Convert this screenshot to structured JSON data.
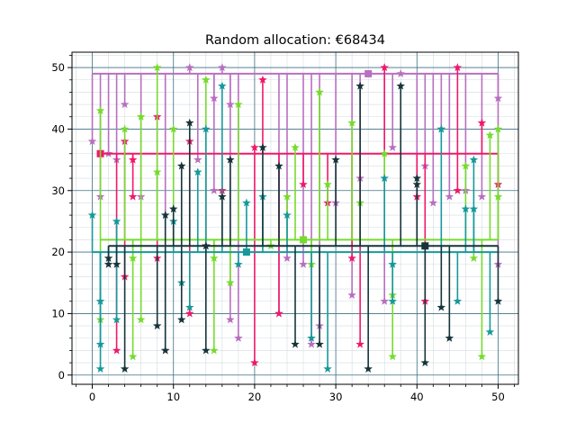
{
  "chart_data": {
    "type": "scatter",
    "title": "Random allocation: €68434",
    "xlabel": "",
    "ylabel": "",
    "xlim": [
      -2.5,
      52.5
    ],
    "ylim": [
      -1.5,
      52.5
    ],
    "x_ticks": [
      0,
      10,
      20,
      30,
      40,
      50
    ],
    "y_ticks": [
      0,
      10,
      20,
      30,
      40,
      50
    ],
    "x_tick_labels": [
      "0",
      "10",
      "20",
      "30",
      "40",
      "50"
    ],
    "y_tick_labels": [
      "0",
      "10",
      "20",
      "30",
      "40",
      "50"
    ],
    "grid": true,
    "minor_grid": true,
    "series": [
      {
        "color": "#b86fc0",
        "hub": [
          34,
          49
        ],
        "bus_y": 49,
        "bus_x": [
          0,
          50
        ],
        "points": [
          [
            0,
            38
          ],
          [
            1,
            29
          ],
          [
            2,
            36
          ],
          [
            3,
            35
          ],
          [
            4,
            44
          ],
          [
            6,
            29
          ],
          [
            9,
            4
          ],
          [
            12,
            50
          ],
          [
            13,
            35
          ],
          [
            15,
            30
          ],
          [
            15,
            45
          ],
          [
            16,
            50
          ],
          [
            17,
            9
          ],
          [
            17,
            44
          ],
          [
            18,
            6
          ],
          [
            23,
            10
          ],
          [
            24,
            19
          ],
          [
            26,
            18
          ],
          [
            27,
            5
          ],
          [
            28,
            8
          ],
          [
            30,
            28
          ],
          [
            32,
            13
          ],
          [
            33,
            32
          ],
          [
            36,
            12
          ],
          [
            37,
            37
          ],
          [
            38,
            49
          ],
          [
            40,
            29
          ],
          [
            41,
            34
          ],
          [
            42,
            28
          ],
          [
            43,
            40
          ],
          [
            44,
            29
          ],
          [
            46,
            30
          ],
          [
            48,
            29
          ],
          [
            50,
            45
          ],
          [
            50,
            18
          ]
        ]
      },
      {
        "color": "#f0186a",
        "hub": [
          1,
          36
        ],
        "bus_y": 36,
        "bus_x": [
          1,
          50
        ],
        "points": [
          [
            3,
            4
          ],
          [
            4,
            38
          ],
          [
            4,
            16
          ],
          [
            5,
            35
          ],
          [
            5,
            29
          ],
          [
            8,
            42
          ],
          [
            8,
            19
          ],
          [
            12,
            10
          ],
          [
            12,
            38
          ],
          [
            14,
            21
          ],
          [
            16,
            30
          ],
          [
            20,
            2
          ],
          [
            20,
            37
          ],
          [
            21,
            48
          ],
          [
            23,
            10
          ],
          [
            26,
            31
          ],
          [
            29,
            28
          ],
          [
            32,
            19
          ],
          [
            33,
            5
          ],
          [
            36,
            50
          ],
          [
            40,
            29
          ],
          [
            41,
            12
          ],
          [
            45,
            30
          ],
          [
            45,
            50
          ],
          [
            48,
            41
          ],
          [
            50,
            31
          ]
        ]
      },
      {
        "color": "#76db2e",
        "hub": [
          26,
          22
        ],
        "bus_y": 22,
        "bus_x": [
          1,
          50
        ],
        "points": [
          [
            1,
            43
          ],
          [
            1,
            9
          ],
          [
            4,
            40
          ],
          [
            5,
            3
          ],
          [
            5,
            19
          ],
          [
            6,
            9
          ],
          [
            6,
            42
          ],
          [
            8,
            50
          ],
          [
            8,
            33
          ],
          [
            10,
            40
          ],
          [
            14,
            48
          ],
          [
            15,
            4
          ],
          [
            15,
            19
          ],
          [
            17,
            15
          ],
          [
            18,
            44
          ],
          [
            22,
            21
          ],
          [
            24,
            29
          ],
          [
            25,
            37
          ],
          [
            27,
            18
          ],
          [
            28,
            46
          ],
          [
            29,
            31
          ],
          [
            32,
            41
          ],
          [
            33,
            28
          ],
          [
            36,
            36
          ],
          [
            37,
            13
          ],
          [
            37,
            3
          ],
          [
            46,
            34
          ],
          [
            47,
            19
          ],
          [
            48,
            3
          ],
          [
            49,
            39
          ],
          [
            50,
            29
          ],
          [
            50,
            40
          ]
        ]
      },
      {
        "color": "#17999b",
        "hub": [
          19,
          20
        ],
        "bus_y": 20,
        "bus_x": [
          0,
          50
        ],
        "points": [
          [
            0,
            26
          ],
          [
            1,
            12
          ],
          [
            1,
            5
          ],
          [
            1,
            1
          ],
          [
            3,
            25
          ],
          [
            3,
            9
          ],
          [
            10,
            25
          ],
          [
            11,
            15
          ],
          [
            12,
            11
          ],
          [
            13,
            33
          ],
          [
            14,
            40
          ],
          [
            16,
            47
          ],
          [
            18,
            18
          ],
          [
            19,
            28
          ],
          [
            21,
            29
          ],
          [
            24,
            26
          ],
          [
            27,
            6
          ],
          [
            29,
            1
          ],
          [
            36,
            32
          ],
          [
            37,
            12
          ],
          [
            37,
            18
          ],
          [
            43,
            40
          ],
          [
            45,
            12
          ],
          [
            46,
            27
          ],
          [
            47,
            27
          ],
          [
            47,
            35
          ],
          [
            49,
            7
          ]
        ]
      },
      {
        "color": "#16343a",
        "hub": [
          41,
          21
        ],
        "bus_y": 21,
        "bus_x": [
          2,
          50
        ],
        "points": [
          [
            2,
            18
          ],
          [
            2,
            19
          ],
          [
            3,
            18
          ],
          [
            4,
            1
          ],
          [
            8,
            8
          ],
          [
            9,
            4
          ],
          [
            9,
            26
          ],
          [
            10,
            27
          ],
          [
            11,
            34
          ],
          [
            11,
            9
          ],
          [
            12,
            41
          ],
          [
            14,
            21
          ],
          [
            14,
            4
          ],
          [
            16,
            29
          ],
          [
            17,
            35
          ],
          [
            21,
            37
          ],
          [
            23,
            34
          ],
          [
            25,
            5
          ],
          [
            28,
            5
          ],
          [
            30,
            35
          ],
          [
            33,
            47
          ],
          [
            34,
            1
          ],
          [
            38,
            47
          ],
          [
            40,
            32
          ],
          [
            40,
            31
          ],
          [
            41,
            2
          ],
          [
            43,
            11
          ],
          [
            44,
            6
          ],
          [
            50,
            12
          ]
        ]
      }
    ]
  }
}
